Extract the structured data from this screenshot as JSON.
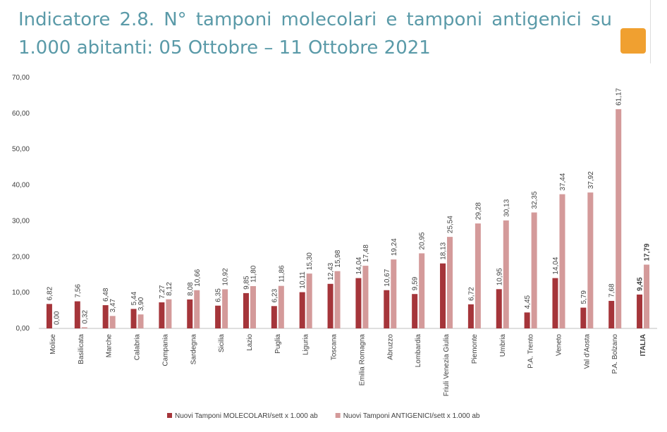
{
  "chart_data": {
    "type": "bar",
    "title": "Indicatore 2.8. N° tamponi molecolari e tamponi antigenici su 1.000 abitanti: 05 Ottobre – 11 Ottobre 2021",
    "categories": [
      "Molise",
      "Basilicata",
      "Marche",
      "Calabria",
      "Campania",
      "Sardegna",
      "Sicilia",
      "Lazio",
      "Puglia",
      "Liguria",
      "Toscana",
      "Emilia Romagna",
      "Abruzzo",
      "Lombardia",
      "Friuli Venezia Giulia",
      "Piemonte",
      "Umbria",
      "P.A. Trento",
      "Veneto",
      "Val d'Aosta",
      "P.A. Bolzano",
      "ITALIA"
    ],
    "series": [
      {
        "name": "Nuovi Tamponi MOLECOLARI/sett x 1.000 ab",
        "color": "#a5353a",
        "values": [
          6.82,
          7.56,
          6.48,
          5.44,
          7.27,
          8.08,
          6.35,
          9.85,
          6.23,
          10.11,
          12.43,
          14.04,
          10.67,
          9.59,
          18.13,
          6.72,
          10.95,
          4.45,
          14.04,
          5.79,
          7.68,
          9.45
        ],
        "value_labels": [
          "6,82",
          "7,56",
          "6,48",
          "5,44",
          "7,27",
          "8,08",
          "6,35",
          "9,85",
          "6,23",
          "10,11",
          "12,43",
          "14,04",
          "10,67",
          "9,59",
          "18,13",
          "6,72",
          "10,95",
          "4,45",
          "14,04",
          "5,79",
          "7,68",
          "9,45"
        ]
      },
      {
        "name": "Nuovi Tamponi ANTIGENICI/sett x 1.000 ab",
        "color": "#d49a9a",
        "values": [
          0.0,
          0.32,
          3.47,
          3.9,
          8.12,
          10.66,
          10.92,
          11.8,
          11.86,
          15.3,
          15.98,
          17.48,
          19.24,
          20.95,
          25.54,
          29.28,
          30.13,
          32.35,
          37.44,
          37.92,
          61.17,
          17.79
        ],
        "value_labels": [
          "0,00",
          "0,32",
          "3,47",
          "3,90",
          "8,12",
          "10,66",
          "10,92",
          "11,80",
          "11,86",
          "15,30",
          "15,98",
          "17,48",
          "19,24",
          "20,95",
          "25,54",
          "29,28",
          "30,13",
          "32,35",
          "37,44",
          "37,92",
          "61,17",
          "17,79"
        ]
      }
    ],
    "ylim": [
      0,
      70
    ],
    "yticks": [
      {
        "value": 0,
        "label": "0,00"
      },
      {
        "value": 10,
        "label": "10,00"
      },
      {
        "value": 20,
        "label": "20,00"
      },
      {
        "value": 30,
        "label": "30,00"
      },
      {
        "value": 40,
        "label": "40,00"
      },
      {
        "value": 50,
        "label": "50,00"
      },
      {
        "value": 60,
        "label": "60,00"
      },
      {
        "value": 70,
        "label": "70,00"
      }
    ],
    "grid": false,
    "legend": "bottom"
  }
}
